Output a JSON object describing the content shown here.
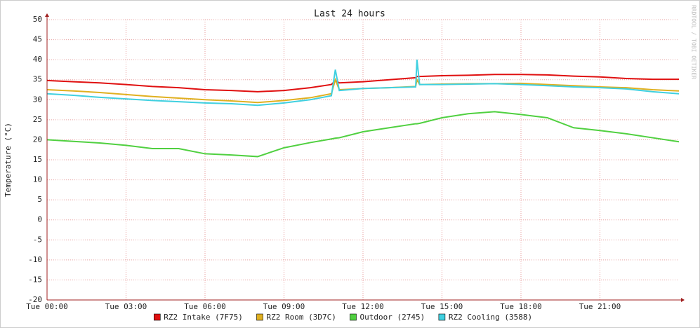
{
  "chart_data": {
    "type": "line",
    "title": "Last 24 hours",
    "y_label": "Temperature (°C)",
    "side_note": "RRDTOOL / TOBI OETIKER",
    "x": [
      0,
      1,
      2,
      3,
      4,
      5,
      6,
      7,
      8,
      9,
      10,
      10.8,
      10.95,
      11.1,
      12,
      13,
      14,
      14.05,
      14.15,
      15,
      16,
      17,
      18,
      19,
      20,
      21,
      22,
      23,
      24
    ],
    "xlim": [
      0,
      24
    ],
    "xticks": [
      {
        "value": 0,
        "label": "Tue 00:00"
      },
      {
        "value": 3,
        "label": "Tue 03:00"
      },
      {
        "value": 6,
        "label": "Tue 06:00"
      },
      {
        "value": 9,
        "label": "Tue 09:00"
      },
      {
        "value": 12,
        "label": "Tue 12:00"
      },
      {
        "value": 15,
        "label": "Tue 15:00"
      },
      {
        "value": 18,
        "label": "Tue 18:00"
      },
      {
        "value": 21,
        "label": "Tue 21:00"
      }
    ],
    "ylim": [
      -20,
      50
    ],
    "yticks": [
      -20,
      -15,
      -10,
      -5,
      0,
      5,
      10,
      15,
      20,
      25,
      30,
      35,
      40,
      45,
      50
    ],
    "grid": true,
    "legend": "bottom",
    "series": [
      {
        "name": "RZ2 Intake (7F75)",
        "color": "#e01010",
        "values": [
          34.8,
          34.5,
          34.2,
          33.8,
          33.3,
          33,
          32.5,
          32.3,
          32,
          32.3,
          33,
          33.8,
          34.8,
          34.2,
          34.5,
          35,
          35.5,
          35.8,
          35.8,
          36,
          36.1,
          36.3,
          36.3,
          36.2,
          35.9,
          35.7,
          35.3,
          35.1,
          35.1
        ]
      },
      {
        "name": "RZ2 Room (3D7C)",
        "color": "#e0b020",
        "values": [
          32.5,
          32.2,
          31.8,
          31.3,
          30.8,
          30.4,
          30,
          29.7,
          29.3,
          29.8,
          30.5,
          31.5,
          35,
          32.5,
          32.8,
          33,
          33.3,
          35,
          33.8,
          33.9,
          34,
          34,
          34.1,
          33.8,
          33.5,
          33.2,
          33,
          32.5,
          32.2
        ]
      },
      {
        "name": "Outdoor (2745)",
        "color": "#50d040",
        "values": [
          20,
          19.6,
          19.2,
          18.6,
          17.8,
          17.8,
          16.5,
          16.2,
          15.8,
          18,
          19.3,
          20.2,
          20.4,
          20.5,
          22,
          23,
          24,
          24,
          24.1,
          25.5,
          26.5,
          27,
          26.3,
          25.5,
          23,
          22.3,
          21.5,
          20.5,
          19.5
        ]
      },
      {
        "name": "RZ2 Cooling (3588)",
        "color": "#40d0e0",
        "values": [
          31.5,
          31.1,
          30.6,
          30.2,
          29.8,
          29.5,
          29.2,
          29,
          28.6,
          29.2,
          30,
          31,
          37.5,
          32.3,
          32.8,
          33,
          33.2,
          40,
          33.8,
          33.8,
          33.9,
          34,
          33.8,
          33.5,
          33.2,
          33,
          32.7,
          32,
          31.5
        ]
      }
    ]
  }
}
